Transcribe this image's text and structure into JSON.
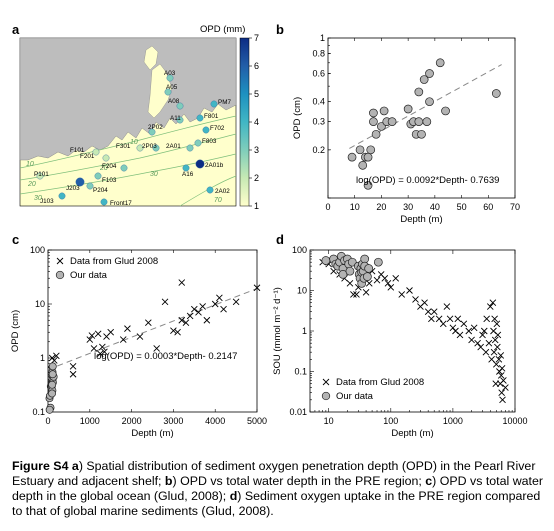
{
  "chart_data": [
    {
      "panel": "a",
      "type": "map",
      "colorbar": {
        "label": "OPD (mm)",
        "min": 1,
        "max": 7,
        "ticks": [
          "1",
          "2",
          "3",
          "4",
          "5",
          "6",
          "7"
        ],
        "colors": [
          "#ffffcc",
          "#c7e9b4",
          "#7fcdbb",
          "#41b6c4",
          "#1d91c0",
          "#225ea8",
          "#0c2c84"
        ]
      },
      "contour_labels": [
        "10",
        "10",
        "20",
        "20",
        "30",
        "30",
        "70"
      ],
      "stations": [
        {
          "name": "A03",
          "opd": 2.6
        },
        {
          "name": "A05",
          "opd": 2.8
        },
        {
          "name": "A08",
          "opd": 3.0
        },
        {
          "name": "A11",
          "opd": 3.2
        },
        {
          "name": "PM7",
          "opd": 4.4
        },
        {
          "name": "F801",
          "opd": 4.0
        },
        {
          "name": "F702",
          "opd": 3.6
        },
        {
          "name": "F803",
          "opd": 3.0
        },
        {
          "name": "2A01",
          "opd": 3.4
        },
        {
          "name": "2P02",
          "opd": 2.8
        },
        {
          "name": "F301",
          "opd": 2.4
        },
        {
          "name": "2P03",
          "opd": 3.0
        },
        {
          "name": "F101",
          "opd": 2.4
        },
        {
          "name": "F201",
          "opd": 2.4
        },
        {
          "name": "F204",
          "opd": 2.6
        },
        {
          "name": "A16",
          "opd": 3.8
        },
        {
          "name": "2A01b",
          "opd": 7.0
        },
        {
          "name": "P101",
          "opd": 2.4
        },
        {
          "name": "F103",
          "opd": 2.6
        },
        {
          "name": "P204",
          "opd": 3.0
        },
        {
          "name": "J203",
          "opd": 6.0
        },
        {
          "name": "J103",
          "opd": 4.0
        },
        {
          "name": "Front17",
          "opd": 4.2
        },
        {
          "name": "2A02",
          "opd": 4.2
        }
      ]
    },
    {
      "panel": "b",
      "type": "scatter",
      "xlabel": "Depth (m)",
      "ylabel": "OPD (cm)",
      "xlim": [
        0,
        70
      ],
      "ylim": [
        0.1,
        1
      ],
      "yscale": "log",
      "xticks": [
        "0",
        "10",
        "20",
        "30",
        "40",
        "50",
        "60",
        "70"
      ],
      "yticks": [
        {
          "v": 0.1,
          "label": ""
        },
        {
          "v": 0.2,
          "label": "0.2"
        },
        {
          "v": 0.3,
          "label": "0.3"
        },
        {
          "v": 0.4,
          "label": "0.4"
        },
        {
          "v": 0.6,
          "label": "0.6"
        },
        {
          "v": 0.8,
          "label": "0.8"
        },
        {
          "v": 1,
          "label": "1"
        }
      ],
      "annotation": "log(OPD) = 0.0092*Depth- 0.7639",
      "fit": {
        "slope": 0.0092,
        "intercept": -0.7639
      },
      "points": [
        [
          9,
          0.18
        ],
        [
          12,
          0.2
        ],
        [
          13,
          0.16
        ],
        [
          14,
          0.18
        ],
        [
          15,
          0.18
        ],
        [
          16,
          0.2
        ],
        [
          15,
          0.12
        ],
        [
          17,
          0.3
        ],
        [
          17,
          0.34
        ],
        [
          18,
          0.25
        ],
        [
          20,
          0.28
        ],
        [
          21,
          0.35
        ],
        [
          22,
          0.3
        ],
        [
          24,
          0.3
        ],
        [
          30,
          0.36
        ],
        [
          31,
          0.29
        ],
        [
          32,
          0.3
        ],
        [
          33,
          0.25
        ],
        [
          34,
          0.3
        ],
        [
          34,
          0.46
        ],
        [
          35,
          0.25
        ],
        [
          36,
          0.55
        ],
        [
          37,
          0.3
        ],
        [
          38,
          0.4
        ],
        [
          38,
          0.6
        ],
        [
          42,
          0.7
        ],
        [
          44,
          0.35
        ],
        [
          63,
          0.45
        ]
      ]
    },
    {
      "panel": "c",
      "type": "scatter",
      "xlabel": "Depth (m)",
      "ylabel": "OPD (cm)",
      "xlim": [
        0,
        5000
      ],
      "ylim": [
        0.1,
        100
      ],
      "yscale": "log",
      "xticks": [
        "0",
        "1000",
        "2000",
        "3000",
        "4000",
        "5000"
      ],
      "yticks": [
        {
          "v": 0.1,
          "label": "0.1"
        },
        {
          "v": 1,
          "label": "1"
        },
        {
          "v": 10,
          "label": "10"
        },
        {
          "v": 100,
          "label": "100"
        }
      ],
      "annotation": "log(OPD) = 0.0003*Depth- 0.2147",
      "fit": {
        "slope": 0.0003,
        "intercept": -0.2147
      },
      "legend": [
        "Data from Glud 2008",
        "Our data"
      ],
      "series": [
        {
          "name": "Data from Glud 2008",
          "marker": "x",
          "points": [
            [
              60,
              0.25
            ],
            [
              80,
              0.6
            ],
            [
              100,
              1.0
            ],
            [
              150,
              0.9
            ],
            [
              200,
              1.1
            ],
            [
              600,
              0.7
            ],
            [
              600,
              0.5
            ],
            [
              1000,
              2.2
            ],
            [
              1050,
              2.6
            ],
            [
              1100,
              1.5
            ],
            [
              1200,
              2.8
            ],
            [
              1250,
              1.2
            ],
            [
              1300,
              1.6
            ],
            [
              1350,
              1.3
            ],
            [
              1400,
              2.5
            ],
            [
              1500,
              3.0
            ],
            [
              1800,
              2.2
            ],
            [
              1900,
              3.5
            ],
            [
              2200,
              2.5
            ],
            [
              2400,
              4.5
            ],
            [
              2600,
              1.5
            ],
            [
              2800,
              11
            ],
            [
              3000,
              3.2
            ],
            [
              3100,
              3.0
            ],
            [
              3200,
              5.0
            ],
            [
              3300,
              4.5
            ],
            [
              3400,
              6.0
            ],
            [
              3500,
              8.0
            ],
            [
              3600,
              7.0
            ],
            [
              3700,
              9.0
            ],
            [
              3200,
              25
            ],
            [
              3800,
              5.0
            ],
            [
              4000,
              10
            ],
            [
              4100,
              13
            ],
            [
              4200,
              8.0
            ],
            [
              4500,
              11
            ],
            [
              5000,
              20
            ]
          ]
        },
        {
          "name": "Our data",
          "marker": "circle",
          "points": [
            [
              9,
              0.18
            ],
            [
              12,
              0.2
            ],
            [
              15,
              0.12
            ],
            [
              17,
              0.3
            ],
            [
              20,
              0.28
            ],
            [
              22,
              0.3
            ],
            [
              30,
              0.36
            ],
            [
              33,
              0.25
            ],
            [
              34,
              0.46
            ],
            [
              36,
              0.55
            ],
            [
              38,
              0.4
            ],
            [
              42,
              0.7
            ],
            [
              44,
              0.35
            ],
            [
              63,
              0.45
            ],
            [
              25,
              0.22
            ],
            [
              28,
              0.32
            ],
            [
              40,
              0.5
            ],
            [
              10,
              0.11
            ]
          ]
        }
      ]
    },
    {
      "panel": "d",
      "type": "scatter",
      "xlabel": "Depth (m)",
      "ylabel": "SOU (mmol m⁻² d⁻¹)",
      "xlim": [
        5,
        10000
      ],
      "ylim": [
        0.01,
        100
      ],
      "xscale": "log",
      "yscale": "log",
      "xticks": [
        {
          "v": 10,
          "label": "10"
        },
        {
          "v": 100,
          "label": "100"
        },
        {
          "v": 1000,
          "label": "1000"
        },
        {
          "v": 10000,
          "label": "10000"
        }
      ],
      "yticks": [
        {
          "v": 0.01,
          "label": "0.01"
        },
        {
          "v": 0.1,
          "label": "0.1"
        },
        {
          "v": 1,
          "label": "1"
        },
        {
          "v": 10,
          "label": "10"
        },
        {
          "v": 100,
          "label": "100"
        }
      ],
      "legend": [
        "Data from Glud 2008",
        "Our data"
      ],
      "series": [
        {
          "name": "Data from Glud 2008",
          "marker": "x",
          "points": [
            [
              8,
              50
            ],
            [
              10,
              45
            ],
            [
              12,
              30
            ],
            [
              14,
              60
            ],
            [
              15,
              25
            ],
            [
              18,
              20
            ],
            [
              20,
              35
            ],
            [
              22,
              15
            ],
            [
              25,
              8
            ],
            [
              28,
              8
            ],
            [
              30,
              12
            ],
            [
              35,
              20
            ],
            [
              40,
              9
            ],
            [
              45,
              15
            ],
            [
              50,
              30
            ],
            [
              60,
              18
            ],
            [
              70,
              25
            ],
            [
              80,
              20
            ],
            [
              90,
              15
            ],
            [
              100,
              12
            ],
            [
              120,
              20
            ],
            [
              150,
              8
            ],
            [
              200,
              10
            ],
            [
              250,
              6
            ],
            [
              300,
              4
            ],
            [
              350,
              5
            ],
            [
              400,
              3
            ],
            [
              450,
              2
            ],
            [
              500,
              3
            ],
            [
              600,
              2
            ],
            [
              700,
              1.5
            ],
            [
              800,
              4
            ],
            [
              900,
              2
            ],
            [
              1000,
              1.2
            ],
            [
              1100,
              1
            ],
            [
              1200,
              2
            ],
            [
              1300,
              0.8
            ],
            [
              1500,
              1.5
            ],
            [
              1800,
              1
            ],
            [
              2000,
              0.6
            ],
            [
              2200,
              1.2
            ],
            [
              2500,
              0.5
            ],
            [
              2800,
              0.4
            ],
            [
              3000,
              0.8
            ],
            [
              3200,
              1
            ],
            [
              3400,
              0.3
            ],
            [
              3500,
              2
            ],
            [
              3800,
              0.5
            ],
            [
              4000,
              4
            ],
            [
              4200,
              0.2
            ],
            [
              4500,
              1
            ],
            [
              4600,
              0.3
            ],
            [
              4800,
              0.6
            ],
            [
              5000,
              0.15
            ],
            [
              5200,
              0.4
            ],
            [
              5500,
              0.2
            ],
            [
              5600,
              0.1
            ],
            [
              5800,
              0.05
            ],
            [
              6000,
              0.08
            ],
            [
              6200,
              0.12
            ],
            [
              6500,
              0.06
            ],
            [
              7000,
              0.04
            ],
            [
              4400,
              5
            ],
            [
              4700,
              2
            ],
            [
              5300,
              0.8
            ],
            [
              6100,
              0.03
            ],
            [
              5900,
              0.25
            ],
            [
              5100,
              1.5
            ],
            [
              4900,
              0.05
            ],
            [
              6300,
              0.02
            ]
          ]
        },
        {
          "name": "Our data",
          "marker": "circle",
          "points": [
            [
              9,
              55
            ],
            [
              12,
              60
            ],
            [
              13,
              45
            ],
            [
              14,
              40
            ],
            [
              15,
              50
            ],
            [
              16,
              70
            ],
            [
              17,
              35
            ],
            [
              17,
              25
            ],
            [
              18,
              55
            ],
            [
              20,
              60
            ],
            [
              21,
              45
            ],
            [
              22,
              30
            ],
            [
              24,
              50
            ],
            [
              30,
              40
            ],
            [
              31,
              25
            ],
            [
              32,
              20
            ],
            [
              33,
              35
            ],
            [
              34,
              15
            ],
            [
              34,
              28
            ],
            [
              35,
              45
            ],
            [
              36,
              30
            ],
            [
              37,
              20
            ],
            [
              38,
              60
            ],
            [
              38,
              40
            ],
            [
              42,
              22
            ],
            [
              44,
              35
            ],
            [
              63,
              50
            ]
          ]
        }
      ]
    }
  ],
  "figure": {
    "panel_labels": [
      "a",
      "b",
      "c",
      "d"
    ]
  },
  "caption": {
    "figure_no": "Figure S4",
    "a_label": "a",
    "a_text": ") Spatial distribution of sediment oxygen penetration depth (OPD) in the Pearl River Estuary and adjacent shelf; ",
    "b_label": "b",
    "b_text": ") OPD vs total water depth in the PRE region; ",
    "c_label": "c",
    "c_text": ") OPD vs total water depth in the global ocean (Glud, 2008); ",
    "d_label": "d",
    "d_text": ") Sediment oxygen uptake in the PRE region compared to that of global marine sediments (Glud, 2008)."
  }
}
